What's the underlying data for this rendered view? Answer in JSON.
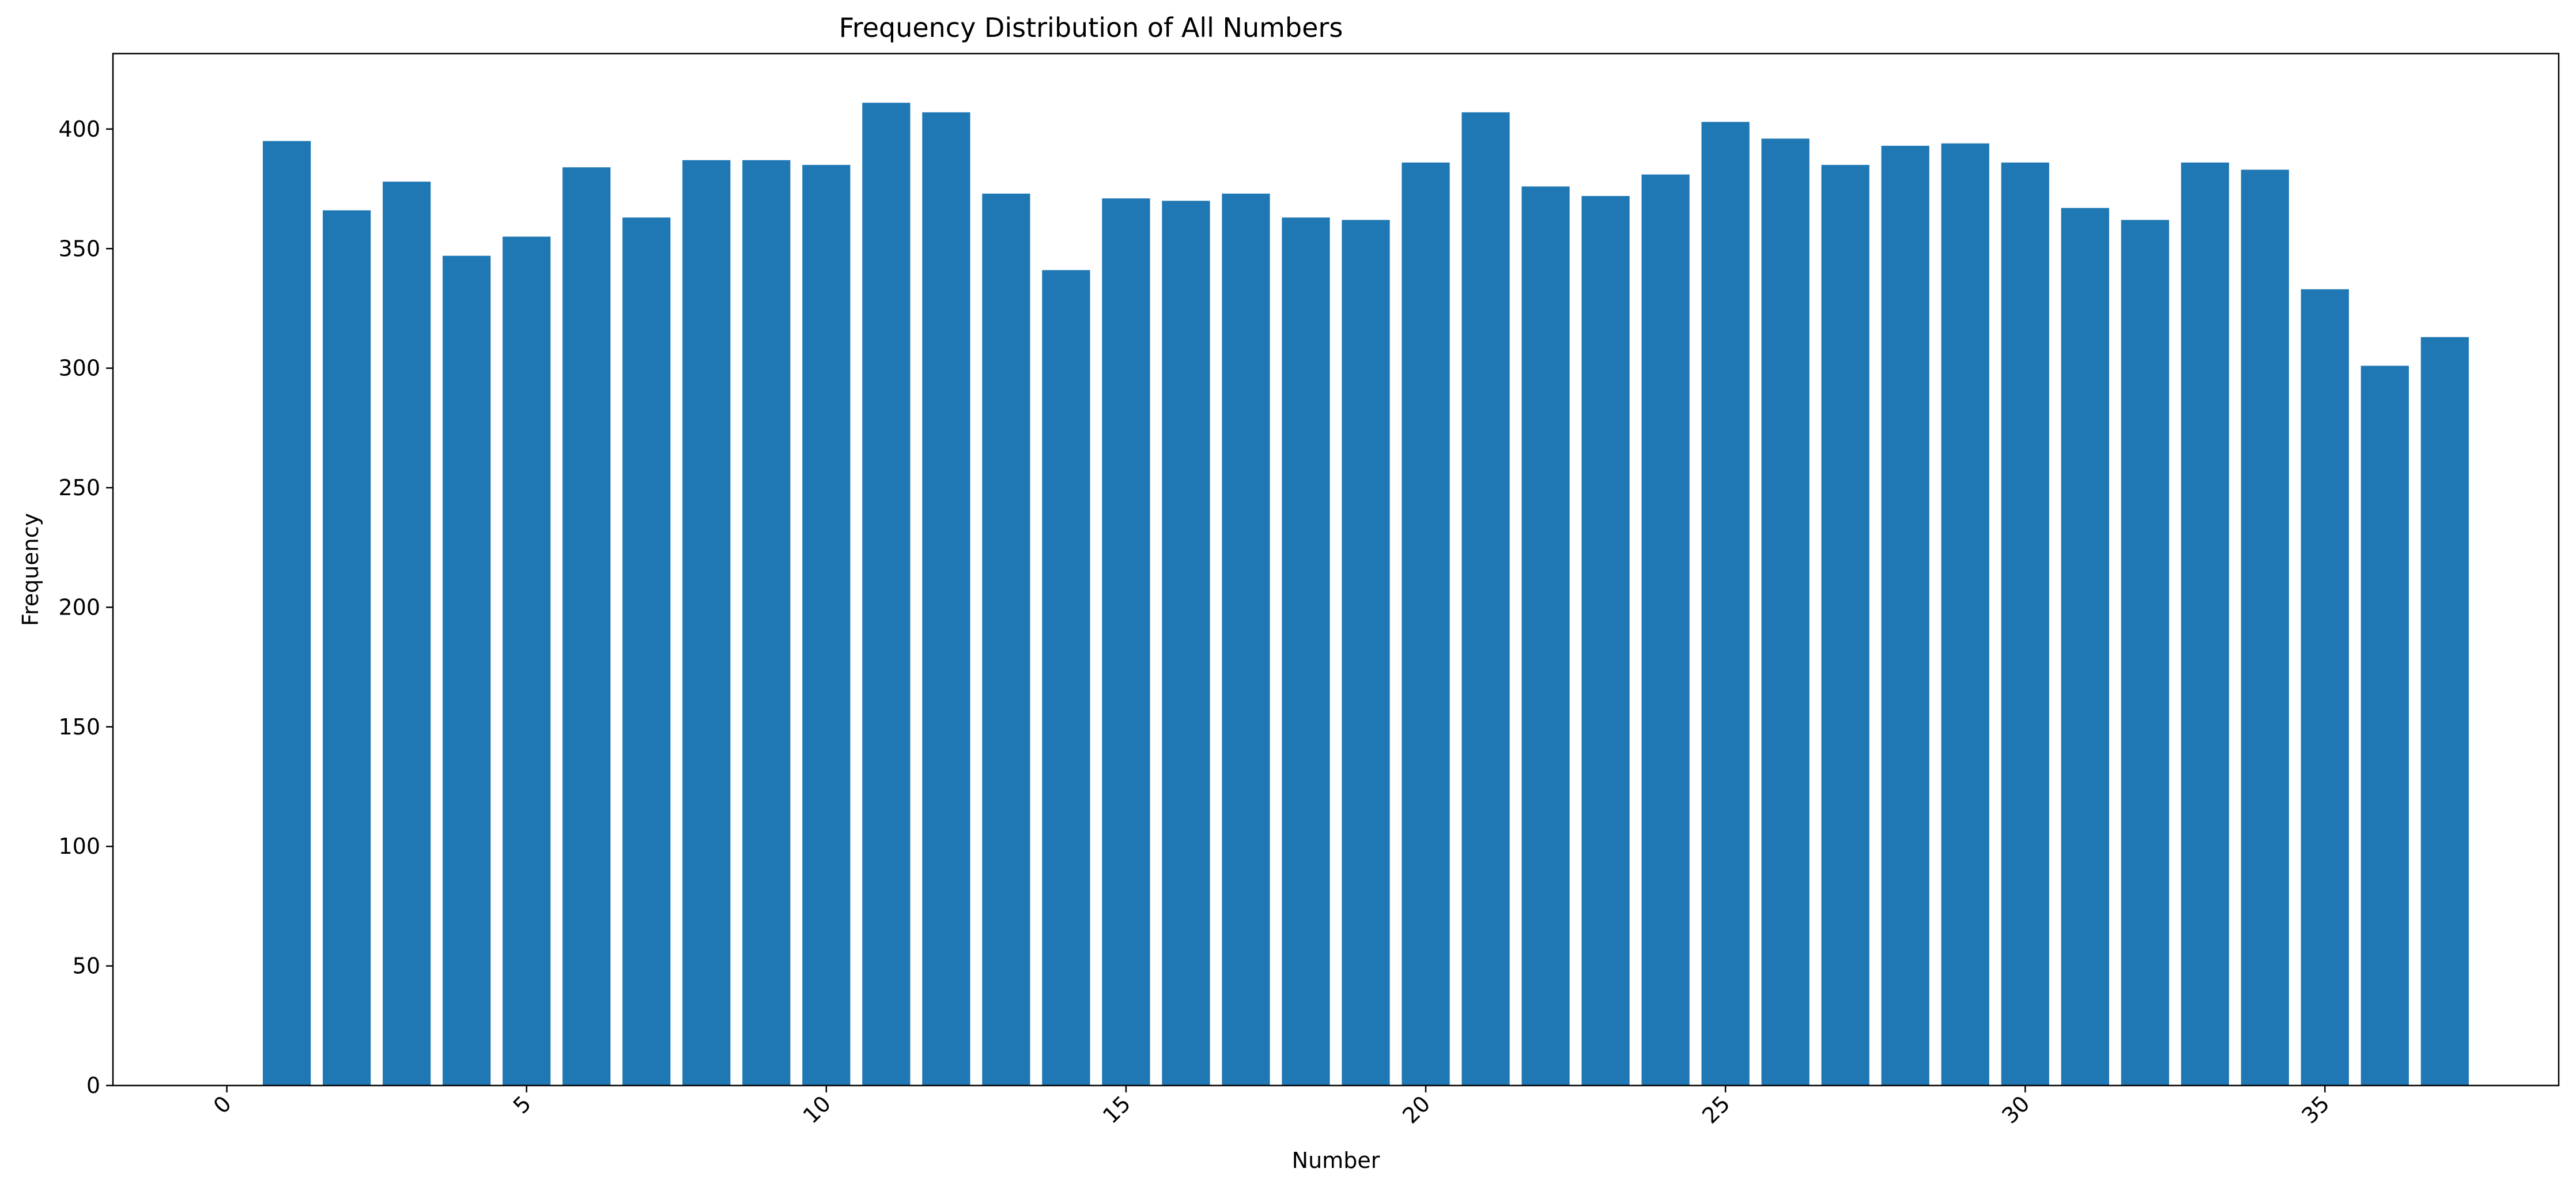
{
  "chart_data": {
    "type": "bar",
    "title": "Frequency Distribution of All Numbers",
    "xlabel": "Number",
    "ylabel": "Frequency",
    "x": [
      1,
      2,
      3,
      4,
      5,
      6,
      7,
      8,
      9,
      10,
      11,
      12,
      13,
      14,
      15,
      16,
      17,
      18,
      19,
      20,
      21,
      22,
      23,
      24,
      25,
      26,
      27,
      28,
      29,
      30,
      31,
      32,
      33,
      34,
      35,
      36,
      37
    ],
    "values": [
      395,
      366,
      378,
      347,
      355,
      384,
      363,
      387,
      387,
      385,
      411,
      407,
      373,
      341,
      371,
      370,
      373,
      363,
      362,
      386,
      407,
      376,
      372,
      381,
      403,
      396,
      385,
      393,
      394,
      386,
      367,
      362,
      386,
      383,
      333,
      301,
      313
    ],
    "xlim": [
      -1.9,
      38.9
    ],
    "ylim": [
      0,
      431.55
    ],
    "xticks": [
      0,
      5,
      10,
      15,
      20,
      25,
      30,
      35
    ],
    "xtick_labels": [
      "0",
      "5",
      "10",
      "15",
      "20",
      "25",
      "30",
      "35"
    ],
    "xtick_rotation_deg": 45,
    "yticks": [
      0,
      50,
      100,
      150,
      200,
      250,
      300,
      350,
      400
    ],
    "ytick_labels": [
      "0",
      "50",
      "100",
      "150",
      "200",
      "250",
      "300",
      "350",
      "400"
    ],
    "bar_color": "#1f77b4",
    "grid": false,
    "legend": "none"
  }
}
